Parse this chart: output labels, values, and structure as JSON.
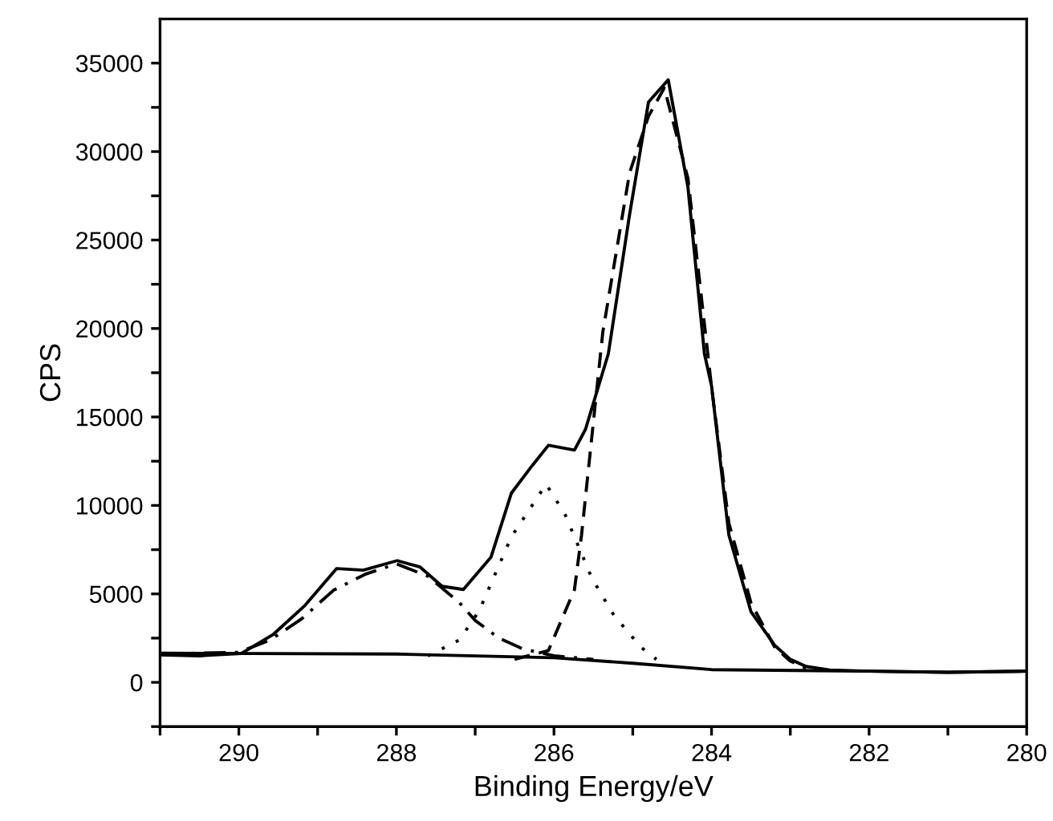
{
  "chart_data": {
    "type": "line",
    "xlabel": "Binding Energy/eV",
    "ylabel": "CPS",
    "xlim": [
      291,
      280
    ],
    "ylim": [
      -2500,
      37500
    ],
    "xticks": [
      {
        "value": 291,
        "label": null
      },
      290,
      {
        "value": 289,
        "label": null
      },
      288,
      {
        "value": 287,
        "label": null
      },
      286,
      {
        "value": 285,
        "label": null
      },
      284,
      {
        "value": 283,
        "label": null
      },
      282,
      {
        "value": 281,
        "label": null
      },
      280
    ],
    "yticks": [
      {
        "value": -2500,
        "label": null
      },
      0,
      {
        "value": 2500,
        "label": null
      },
      5000,
      {
        "value": 7500,
        "label": null
      },
      10000,
      {
        "value": 12500,
        "label": null
      },
      15000,
      {
        "value": 17500,
        "label": null
      },
      20000,
      {
        "value": 22500,
        "label": null
      },
      25000,
      {
        "value": 27500,
        "label": null
      },
      30000,
      {
        "value": 32500,
        "label": null
      },
      35000
    ],
    "grid": false,
    "legend": false,
    "series": [
      {
        "color": "#000000",
        "line_style": "solid",
        "x": [
          291,
          290.5,
          289.97,
          289.56,
          289.16,
          288.76,
          288.42,
          287.99,
          287.7,
          287.42,
          287.15,
          286.8,
          286.54,
          286.28,
          286.07,
          285.74,
          285.6,
          285.31,
          285.04,
          284.8,
          284.55,
          284.3,
          284.09,
          284.0,
          283.78,
          283.5,
          283.2,
          283.0,
          282.8,
          282.5,
          282,
          281,
          280
        ],
        "values": [
          1550,
          1500,
          1630,
          2720,
          4350,
          6430,
          6340,
          6880,
          6520,
          5430,
          5250,
          7070,
          10700,
          12230,
          13400,
          13130,
          14300,
          18570,
          26450,
          32800,
          34060,
          28000,
          18570,
          16760,
          8330,
          4000,
          2100,
          1300,
          900,
          700,
          630,
          570,
          630
        ]
      },
      {
        "color": "#000000",
        "line_style": "solid",
        "x": [
          291,
          288,
          286,
          285,
          284,
          282,
          281,
          280
        ],
        "values": [
          1650,
          1600,
          1390,
          1080,
          720,
          630,
          570,
          630
        ]
      },
      {
        "color": "#000000",
        "line_style": "dashed",
        "x": [
          286.5,
          286.07,
          285.74,
          285.65,
          285.38,
          285.04,
          284.8,
          284.6,
          284.3,
          284.0,
          283.78,
          283.5,
          283.2,
          283.0,
          282.8
        ],
        "values": [
          1300,
          1800,
          5240,
          8330,
          19800,
          28800,
          32000,
          33600,
          28500,
          16700,
          9000,
          4500,
          2000,
          1200,
          800
        ]
      },
      {
        "color": "#000000",
        "line_style": "dotted",
        "x": [
          287.6,
          287.2,
          286.95,
          286.54,
          286.1,
          285.86,
          285.52,
          285.24,
          284.9,
          284.7
        ],
        "values": [
          1500,
          2400,
          4040,
          8230,
          11200,
          9500,
          5900,
          3800,
          2000,
          1300
        ]
      },
      {
        "color": "#000000",
        "line_style": "dashdot",
        "x": [
          291,
          290,
          289.6,
          289.2,
          288.8,
          288.4,
          288.0,
          287.6,
          287.2,
          287.0,
          286.7,
          286.4,
          286.0,
          285.5
        ],
        "values": [
          1600,
          1700,
          2400,
          3600,
          5200,
          6100,
          6700,
          6000,
          4500,
          3500,
          2500,
          1900,
          1500,
          1300
        ]
      }
    ]
  }
}
